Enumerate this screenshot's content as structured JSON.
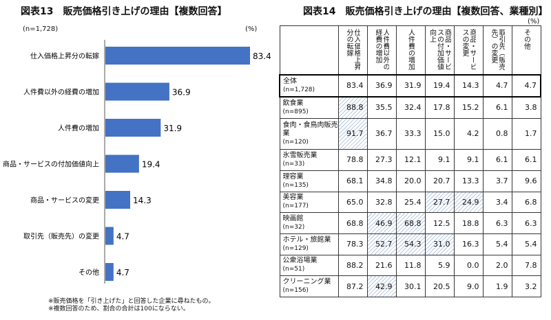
{
  "left": {
    "title": "図表13　販売価格引き上げの理由【複数回答】",
    "n_label": "(n=1,728)",
    "unit_label": "(%)",
    "notes": [
      "※販売価格を「引き上げた」と回答した企業に尋ねたもの。",
      "※複数回答のため、割合の合計は100にならない。"
    ]
  },
  "right": {
    "title": "図表14　販売価格引き上げの理由【複数回答、業種別】",
    "unit_label": "(%)",
    "columns": [
      "仕入価格上昇分の転嫁",
      "人件費以外の経費の増加",
      "人件費の増加",
      "商品・サービスの付加価値向上",
      "商品・サービスの変更",
      "取引先（販売先）の変更",
      "その他"
    ],
    "rows": [
      {
        "name": "全体",
        "n": "(n=1,728)",
        "values": [
          "83.4",
          "36.9",
          "31.9",
          "19.4",
          "14.3",
          "4.7",
          "4.7"
        ],
        "hl": []
      },
      {
        "name": "飲食業",
        "n": "(n=895)",
        "values": [
          "88.8",
          "35.5",
          "32.4",
          "17.8",
          "15.2",
          "6.1",
          "3.8"
        ],
        "hl": [
          0
        ]
      },
      {
        "name": "食肉・食鳥肉販売業",
        "n": "(n=120)",
        "values": [
          "91.7",
          "36.7",
          "33.3",
          "15.0",
          "4.2",
          "0.8",
          "1.7"
        ],
        "hl": [
          0
        ]
      },
      {
        "name": "氷雪販売業",
        "n": "(n=33)",
        "values": [
          "78.8",
          "27.3",
          "12.1",
          "9.1",
          "9.1",
          "6.1",
          "6.1"
        ],
        "hl": []
      },
      {
        "name": "理容業",
        "n": "(n=135)",
        "values": [
          "68.1",
          "34.8",
          "20.0",
          "20.7",
          "13.3",
          "3.7",
          "9.6"
        ],
        "hl": []
      },
      {
        "name": "美容業",
        "n": "(n=177)",
        "values": [
          "65.0",
          "32.8",
          "25.4",
          "27.7",
          "24.9",
          "3.4",
          "6.8"
        ],
        "hl": [
          3,
          4
        ]
      },
      {
        "name": "映画館",
        "n": "(n=32)",
        "values": [
          "68.8",
          "46.9",
          "68.8",
          "12.5",
          "18.8",
          "6.3",
          "6.3"
        ],
        "hl": [
          1,
          2
        ]
      },
      {
        "name": "ホテル・旅館業",
        "n": "(n=129)",
        "values": [
          "78.3",
          "52.7",
          "54.3",
          "31.0",
          "16.3",
          "5.4",
          "5.4"
        ],
        "hl": [
          1,
          2,
          3
        ]
      },
      {
        "name": "公衆浴場業",
        "n": "(n=51)",
        "values": [
          "88.2",
          "21.6",
          "11.8",
          "5.9",
          "0.0",
          "2.0",
          "7.8"
        ],
        "hl": []
      },
      {
        "name": "クリーニング業",
        "n": "(n=156)",
        "values": [
          "87.2",
          "42.9",
          "30.1",
          "20.5",
          "9.0",
          "1.9",
          "3.2"
        ],
        "hl": [
          1
        ]
      }
    ]
  },
  "chart_data": [
    {
      "type": "bar",
      "orientation": "horizontal",
      "title": "図表13　販売価格引き上げの理由【複数回答】",
      "categories": [
        "仕入価格上昇分の転嫁",
        "人件費以外の経費の増加",
        "人件費の増加",
        "商品・サービスの付加価値向上",
        "商品・サービスの変更",
        "取引先（販売先）の変更",
        "その他"
      ],
      "values": [
        83.4,
        36.9,
        31.9,
        19.4,
        14.3,
        4.7,
        4.7
      ],
      "xlim": [
        0,
        100
      ],
      "grid": false,
      "bar_color": "#4472C4"
    }
  ]
}
